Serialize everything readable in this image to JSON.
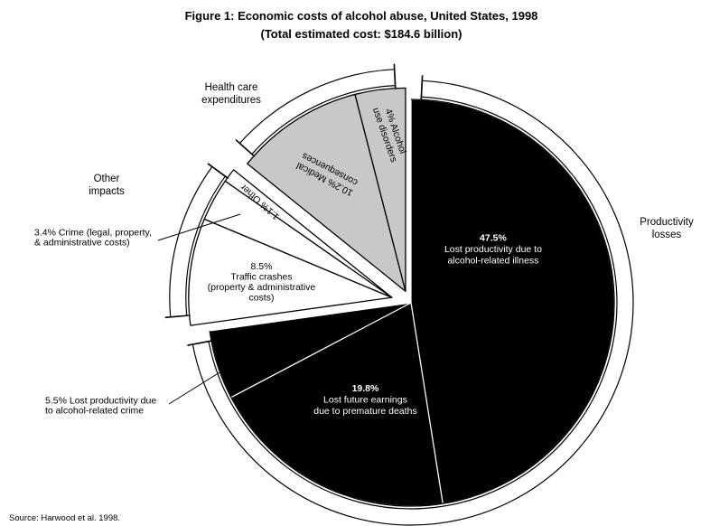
{
  "chart_data": {
    "type": "pie",
    "title": "Figure 1:  Economic costs of alcohol abuse, United States, 1998",
    "subtitle": "(Total estimated cost:  $184.6 billion)",
    "source": "Source:  Harwood et al. 1998.",
    "colors": {
      "productivity": "#000000",
      "health": "#c8c8c8",
      "other": "#ffffff",
      "outline": "#000000"
    },
    "groups": [
      {
        "name": "Productivity losses",
        "lines": [
          "Productivity",
          "losses"
        ]
      },
      {
        "name": "Health care expenditures",
        "lines": [
          "Health care",
          "expenditures"
        ]
      },
      {
        "name": "Other impacts",
        "lines": [
          "Other",
          "impacts"
        ]
      }
    ],
    "slices": [
      {
        "group": "Productivity losses",
        "value": 47.5,
        "label_lines": [
          "47.5%",
          "Lost productivity due to",
          "alcohol-related illness"
        ]
      },
      {
        "group": "Productivity losses",
        "value": 19.8,
        "label_lines": [
          "19.8%",
          "Lost future earnings",
          "due to premature deaths"
        ]
      },
      {
        "group": "Productivity losses",
        "value": 5.5,
        "label_lines": [
          "5.5% Lost productivity due",
          "to alcohol-related crime"
        ]
      },
      {
        "group": "Other impacts",
        "value": 8.5,
        "label_lines": [
          "8.5%",
          "Traffic crashes",
          "(property & administrative",
          "costs)"
        ]
      },
      {
        "group": "Other impacts",
        "value": 3.4,
        "label_lines": [
          "3.4% Crime (legal, property,",
          "& administrative costs)"
        ]
      },
      {
        "group": "Other impacts",
        "value": 1.1,
        "label_lines": [
          "1.1% Other"
        ]
      },
      {
        "group": "Health care expenditures",
        "value": 10.2,
        "label_lines": [
          "10.2% Medical",
          "consequences"
        ]
      },
      {
        "group": "Health care expenditures",
        "value": 4.0,
        "label_lines": [
          "4% Alcohol",
          "use disorders"
        ]
      }
    ]
  }
}
